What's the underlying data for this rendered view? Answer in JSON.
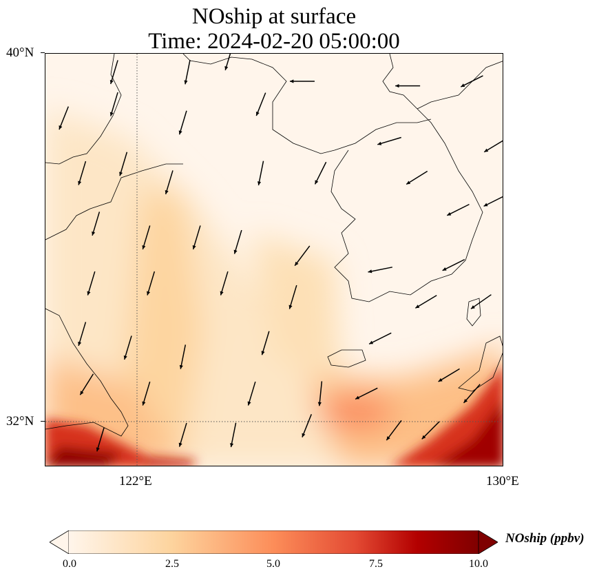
{
  "title": {
    "line1": "NOship at surface",
    "line2": "Time: 2024-02-20 05:00:00"
  },
  "map": {
    "extent": {
      "lon": [
        120,
        130
      ],
      "lat": [
        31,
        40
      ]
    },
    "lat_ticks": [
      {
        "value": 40,
        "label": "40°N"
      },
      {
        "value": 32,
        "label": "32°N"
      }
    ],
    "lon_ticks": [
      {
        "value": 122,
        "label": "122°E"
      },
      {
        "value": 130,
        "label": "130°E"
      }
    ],
    "gridlines": {
      "lon": [
        122
      ],
      "lat": [
        32
      ],
      "style": "dotted"
    }
  },
  "colorbar": {
    "label": "NOship (ppbv)",
    "range": [
      0,
      10
    ],
    "ticks": [
      "0.0",
      "2.5",
      "5.0",
      "7.5",
      "10.0"
    ],
    "colormap": [
      "#fff5eb",
      "#fdd49e",
      "#fc8d59",
      "#d7301f",
      "#b30000",
      "#7f0000"
    ],
    "extend": "both"
  },
  "wind_vectors": [
    {
      "lon": 121.5,
      "lat": 39.6,
      "u": -0.3,
      "v": -1
    },
    {
      "lon": 123.1,
      "lat": 39.6,
      "u": -0.2,
      "v": -1
    },
    {
      "lon": 124.0,
      "lat": 39.9,
      "u": -0.3,
      "v": -1
    },
    {
      "lon": 120.4,
      "lat": 38.6,
      "u": -0.4,
      "v": -1
    },
    {
      "lon": 121.5,
      "lat": 38.9,
      "u": -0.3,
      "v": -1
    },
    {
      "lon": 123.0,
      "lat": 38.5,
      "u": -0.3,
      "v": -1
    },
    {
      "lon": 124.7,
      "lat": 38.9,
      "u": -0.4,
      "v": -1
    },
    {
      "lon": 125.6,
      "lat": 39.4,
      "u": -1,
      "v": 0
    },
    {
      "lon": 127.9,
      "lat": 39.3,
      "u": -1,
      "v": 0
    },
    {
      "lon": 129.3,
      "lat": 39.4,
      "u": -1,
      "v": -0.5
    },
    {
      "lon": 127.5,
      "lat": 38.1,
      "u": -1,
      "v": -0.3
    },
    {
      "lon": 129.8,
      "lat": 38.0,
      "u": -1,
      "v": -0.6
    },
    {
      "lon": 120.8,
      "lat": 37.4,
      "u": -0.3,
      "v": -1
    },
    {
      "lon": 121.7,
      "lat": 37.6,
      "u": -0.3,
      "v": -1
    },
    {
      "lon": 122.7,
      "lat": 37.2,
      "u": -0.3,
      "v": -1
    },
    {
      "lon": 124.7,
      "lat": 37.4,
      "u": -0.2,
      "v": -1
    },
    {
      "lon": 126.0,
      "lat": 37.4,
      "u": -0.5,
      "v": -1
    },
    {
      "lon": 128.1,
      "lat": 37.3,
      "u": -0.8,
      "v": -0.5
    },
    {
      "lon": 129.0,
      "lat": 36.6,
      "u": -1,
      "v": -0.5
    },
    {
      "lon": 129.8,
      "lat": 36.8,
      "u": -1,
      "v": -0.5
    },
    {
      "lon": 121.1,
      "lat": 36.3,
      "u": -0.3,
      "v": -1
    },
    {
      "lon": 122.2,
      "lat": 36.0,
      "u": -0.3,
      "v": -1
    },
    {
      "lon": 123.3,
      "lat": 36.0,
      "u": -0.3,
      "v": -1
    },
    {
      "lon": 124.2,
      "lat": 35.9,
      "u": -0.3,
      "v": -1
    },
    {
      "lon": 125.6,
      "lat": 35.6,
      "u": -0.6,
      "v": -0.8
    },
    {
      "lon": 127.3,
      "lat": 35.3,
      "u": -1,
      "v": -0.2
    },
    {
      "lon": 128.9,
      "lat": 35.4,
      "u": -1,
      "v": -0.5
    },
    {
      "lon": 121.0,
      "lat": 35.0,
      "u": -0.3,
      "v": -1
    },
    {
      "lon": 122.3,
      "lat": 35.0,
      "u": -0.3,
      "v": -1
    },
    {
      "lon": 123.9,
      "lat": 35.0,
      "u": -0.3,
      "v": -1
    },
    {
      "lon": 125.4,
      "lat": 34.7,
      "u": -0.3,
      "v": -1
    },
    {
      "lon": 128.3,
      "lat": 34.6,
      "u": -1,
      "v": -0.6
    },
    {
      "lon": 129.5,
      "lat": 34.6,
      "u": -1,
      "v": -0.7
    },
    {
      "lon": 120.8,
      "lat": 33.9,
      "u": -0.3,
      "v": -1
    },
    {
      "lon": 121.8,
      "lat": 33.6,
      "u": -0.3,
      "v": -1
    },
    {
      "lon": 123.0,
      "lat": 33.4,
      "u": -0.2,
      "v": -1
    },
    {
      "lon": 124.8,
      "lat": 33.7,
      "u": -0.3,
      "v": -1
    },
    {
      "lon": 127.3,
      "lat": 33.8,
      "u": -1,
      "v": -0.5
    },
    {
      "lon": 128.8,
      "lat": 33.0,
      "u": -1,
      "v": -0.6
    },
    {
      "lon": 120.9,
      "lat": 32.8,
      "u": -0.5,
      "v": -0.8
    },
    {
      "lon": 122.2,
      "lat": 32.6,
      "u": -0.3,
      "v": -1
    },
    {
      "lon": 124.5,
      "lat": 32.6,
      "u": -0.3,
      "v": -1
    },
    {
      "lon": 126.0,
      "lat": 32.6,
      "u": -0.1,
      "v": -1
    },
    {
      "lon": 127.0,
      "lat": 32.6,
      "u": -1,
      "v": -0.5
    },
    {
      "lon": 129.3,
      "lat": 32.6,
      "u": -0.7,
      "v": -0.8
    },
    {
      "lon": 121.2,
      "lat": 31.6,
      "u": -0.3,
      "v": -1
    },
    {
      "lon": 123.0,
      "lat": 31.7,
      "u": -0.3,
      "v": -1
    },
    {
      "lon": 124.1,
      "lat": 31.7,
      "u": -0.2,
      "v": -1
    },
    {
      "lon": 125.7,
      "lat": 31.9,
      "u": -0.4,
      "v": -1
    },
    {
      "lon": 127.6,
      "lat": 31.8,
      "u": -0.6,
      "v": -0.8
    },
    {
      "lon": 128.4,
      "lat": 31.8,
      "u": -0.7,
      "v": -0.7
    }
  ]
}
